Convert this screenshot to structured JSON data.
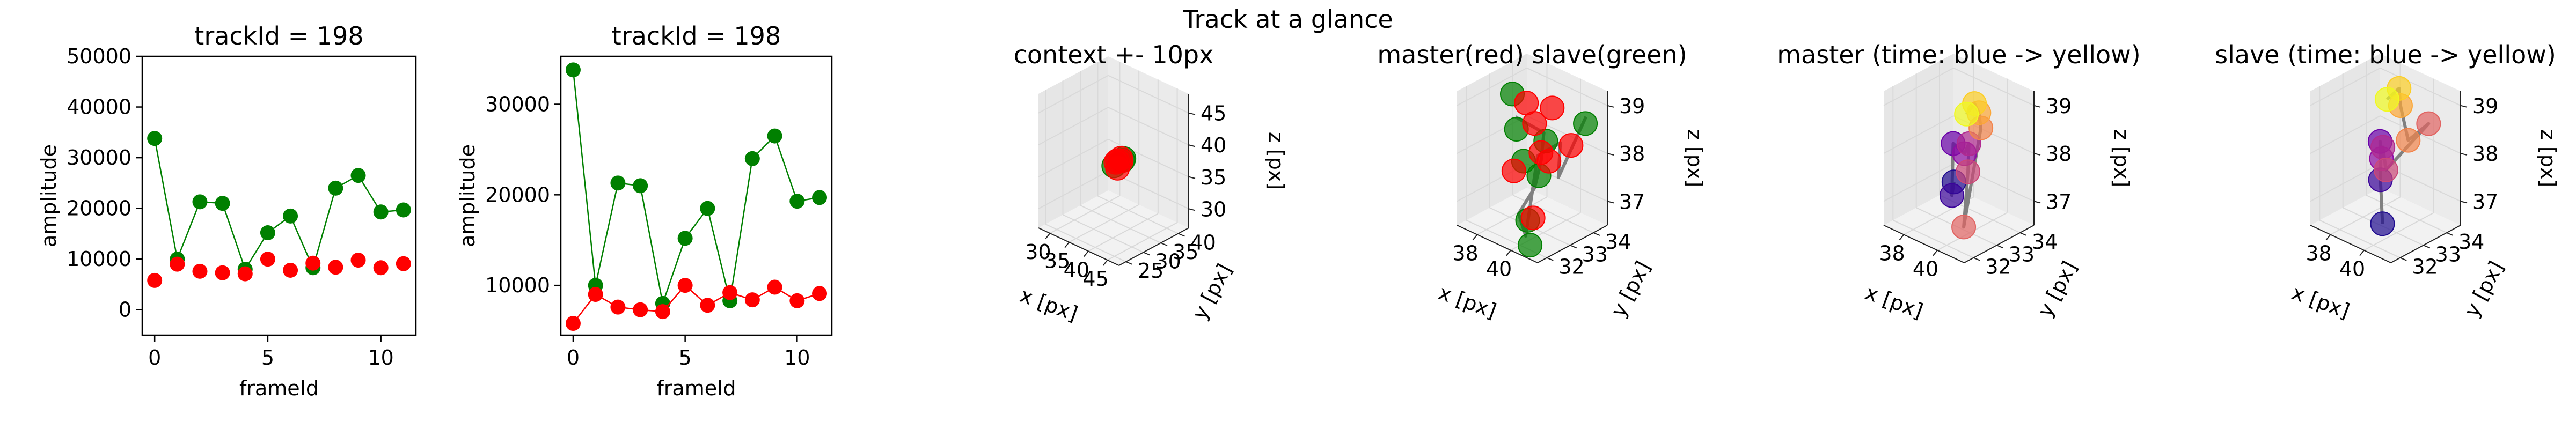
{
  "suptitle": "Track at a glance",
  "colors": {
    "master": "#ff0000",
    "slave": "#008000",
    "path": "#808080",
    "pane_wall": "#f2f2f2",
    "grid": "#d9d9d9"
  },
  "chart_data": [
    {
      "type": "line",
      "title": "trackId = 198",
      "xlabel": "frameId",
      "ylabel": "amplitude",
      "xlim": [
        -0.55,
        11.55
      ],
      "ylim": [
        -5000,
        50000
      ],
      "xticks": [
        "0",
        "5",
        "10"
      ],
      "xtick_values": [
        0,
        5,
        10
      ],
      "yticks": [
        "0",
        "10000",
        "20000",
        "30000",
        "40000",
        "50000"
      ],
      "ytick_values": [
        0,
        10000,
        20000,
        30000,
        40000,
        50000
      ],
      "x": [
        0,
        1,
        2,
        3,
        4,
        5,
        6,
        7,
        8,
        9,
        10,
        11
      ],
      "series": [
        {
          "color": "#008000",
          "line": true,
          "values": [
            33800,
            10000,
            21300,
            21000,
            8000,
            15200,
            18500,
            8300,
            24000,
            26500,
            19300,
            19700
          ]
        },
        {
          "color": "#ff0000",
          "line": false,
          "values": [
            5800,
            9000,
            7600,
            7300,
            7100,
            10000,
            7800,
            9200,
            8400,
            9800,
            8300,
            9100
          ]
        }
      ]
    },
    {
      "type": "line",
      "title": "trackId = 198",
      "xlabel": "frameId",
      "ylabel": "amplitude",
      "xlim": [
        -0.55,
        11.55
      ],
      "ylim": [
        4500,
        35300
      ],
      "xticks": [
        "0",
        "5",
        "10"
      ],
      "xtick_values": [
        0,
        5,
        10
      ],
      "yticks": [
        "10000",
        "20000",
        "30000"
      ],
      "ytick_values": [
        10000,
        20000,
        30000
      ],
      "x": [
        0,
        1,
        2,
        3,
        4,
        5,
        6,
        7,
        8,
        9,
        10,
        11
      ],
      "series": [
        {
          "color": "#008000",
          "line": true,
          "values": [
            33800,
            10000,
            21300,
            21000,
            8000,
            15200,
            18500,
            8300,
            24000,
            26500,
            19300,
            19700
          ]
        },
        {
          "color": "#ff0000",
          "line": true,
          "values": [
            5800,
            9000,
            7600,
            7300,
            7100,
            10000,
            7800,
            9200,
            8400,
            9800,
            8300,
            9100
          ]
        }
      ]
    },
    {
      "type": "scatter",
      "dims": 3,
      "title": "context +- 10px",
      "xlabel": "x [px]",
      "ylabel": "y [px]",
      "zlabel": "z [px]",
      "xlim": [
        27,
        48
      ],
      "ylim": [
        23,
        43
      ],
      "zlim": [
        27,
        48
      ],
      "xticks": [
        "30",
        "35",
        "40",
        "45"
      ],
      "xtick_values": [
        30,
        35,
        40,
        45
      ],
      "yticks": [
        "25",
        "30",
        "35",
        "40"
      ],
      "ytick_values": [
        25,
        30,
        35,
        40
      ],
      "zticks": [
        "30",
        "35",
        "40",
        "45"
      ],
      "ztick_values": [
        30,
        35,
        40,
        45
      ],
      "path_x": [
        38.5,
        39.0,
        38.3,
        39.2,
        38.6,
        39.0
      ],
      "path_y": [
        33.0,
        33.3,
        32.8,
        33.4,
        32.9,
        33.2
      ],
      "path_z": [
        37.5,
        38.0,
        37.4,
        38.2,
        37.6,
        38.1
      ],
      "series": [
        {
          "color": "#008000",
          "x": [
            39.5,
            38.0,
            40.0
          ],
          "y": [
            33.5,
            32.5,
            33.2
          ],
          "z": [
            38.0,
            37.0,
            38.5
          ]
        },
        {
          "color": "#ff0000",
          "x": [
            38.5,
            39.0,
            38.2,
            39.4,
            38.8
          ],
          "y": [
            33.0,
            33.4,
            32.9,
            33.1,
            32.7
          ],
          "z": [
            37.8,
            38.2,
            37.5,
            38.0,
            36.8
          ]
        }
      ]
    },
    {
      "type": "scatter",
      "dims": 3,
      "title": "master(red) slave(green)",
      "xlabel": "x [px]",
      "ylabel": "y [px]",
      "zlabel": "z [px]",
      "xlim": [
        36.8,
        41.6
      ],
      "ylim": [
        31.6,
        34.6
      ],
      "zlim": [
        36.5,
        39.3
      ],
      "xticks": [
        "38",
        "40"
      ],
      "xtick_values": [
        38,
        40
      ],
      "yticks": [
        "32",
        "33",
        "34"
      ],
      "ytick_values": [
        32,
        33,
        34
      ],
      "zticks": [
        "37",
        "38",
        "39"
      ],
      "ztick_values": [
        37,
        38,
        39
      ],
      "path_x": [
        38.2,
        39.2,
        39.6,
        39.9,
        39.5,
        40.2,
        39.8,
        40.6,
        40.9,
        41.3
      ],
      "path_y": [
        33.1,
        33.6,
        33.2,
        32.7,
        32.3,
        32.1,
        32.9,
        33.3,
        33.0,
        33.9
      ],
      "path_z": [
        38.6,
        38.3,
        37.9,
        37.5,
        37.0,
        36.7,
        38.1,
        38.4,
        37.8,
        38.9
      ],
      "series": [
        {
          "color": "#008000",
          "x": [
            37.6,
            38.4,
            39.1,
            39.9,
            40.6,
            41.4,
            38.9,
            39.6
          ],
          "y": [
            33.4,
            33.0,
            32.8,
            32.4,
            32.0,
            33.8,
            33.9,
            33.1
          ],
          "z": [
            38.9,
            38.4,
            37.9,
            36.9,
            36.6,
            38.8,
            38.0,
            37.6
          ]
        },
        {
          "color": "#ff0000",
          "x": [
            38.3,
            39.2,
            40.0,
            40.5,
            41.1,
            39.7,
            38.8,
            40.2
          ],
          "y": [
            33.5,
            33.2,
            32.9,
            32.2,
            33.4,
            33.6,
            32.6,
            33.1
          ],
          "z": [
            38.8,
            38.6,
            38.2,
            37.1,
            38.4,
            38.9,
            37.7,
            38.0
          ]
        }
      ]
    },
    {
      "type": "scatter",
      "dims": 3,
      "title": "master (time: blue -> yellow)",
      "xlabel": "x [px]",
      "ylabel": "y [px]",
      "zlabel": "z [px]",
      "xlim": [
        36.8,
        41.6
      ],
      "ylim": [
        31.6,
        34.6
      ],
      "zlim": [
        36.5,
        39.3
      ],
      "xticks": [
        "38",
        "40"
      ],
      "xtick_values": [
        38,
        40
      ],
      "yticks": [
        "32",
        "33",
        "34"
      ],
      "ytick_values": [
        32,
        33,
        34
      ],
      "zticks": [
        "37",
        "38",
        "39"
      ],
      "ztick_values": [
        37,
        38,
        39
      ],
      "path_x": [
        39.6,
        39.2,
        39.0,
        39.4,
        39.8,
        40.3,
        40.6,
        40.1,
        39.7,
        39.3,
        39.1
      ],
      "path_y": [
        32.6,
        32.8,
        33.0,
        33.2,
        33.1,
        32.7,
        32.3,
        33.4,
        33.6,
        33.7,
        33.5
      ],
      "path_z": [
        37.6,
        37.2,
        38.2,
        38.0,
        38.3,
        37.9,
        36.9,
        38.6,
        38.8,
        38.9,
        38.7
      ],
      "series": [
        {
          "colors": [
            "#1f0c8f",
            "#3b049a",
            "#6a00a8",
            "#8f0da4",
            "#b12a90",
            "#cc4778",
            "#e16462",
            "#f2844b",
            "#fca636",
            "#fcce25",
            "#f0f921"
          ],
          "x": [
            39.6,
            39.2,
            39.0,
            39.4,
            39.8,
            40.3,
            40.6,
            40.1,
            39.7,
            39.3,
            39.1
          ],
          "y": [
            32.6,
            32.8,
            33.0,
            33.2,
            33.1,
            32.7,
            32.3,
            33.4,
            33.6,
            33.7,
            33.5
          ],
          "z": [
            37.6,
            37.2,
            38.2,
            38.0,
            38.3,
            37.9,
            36.9,
            38.6,
            38.8,
            38.9,
            38.7
          ]
        }
      ]
    },
    {
      "type": "scatter",
      "dims": 3,
      "title": "slave (time: blue -> yellow)",
      "xlabel": "x [px]",
      "ylabel": "y [px]",
      "zlabel": "z [px]",
      "xlim": [
        36.8,
        41.6
      ],
      "ylim": [
        31.6,
        34.6
      ],
      "zlim": [
        36.5,
        39.3
      ],
      "xticks": [
        "38",
        "40"
      ],
      "xtick_values": [
        38,
        40
      ],
      "yticks": [
        "32",
        "33",
        "34"
      ],
      "ytick_values": [
        32,
        33,
        34
      ],
      "path_x": [
        39.3,
        38.9,
        38.6,
        39.1,
        39.6,
        40.2,
        40.8,
        40.0,
        39.4,
        38.9,
        38.6
      ],
      "path_y": [
        32.9,
        33.1,
        33.3,
        33.0,
        32.7,
        32.4,
        33.8,
        33.5,
        33.6,
        33.9,
        33.6
      ],
      "path_z": [
        36.6,
        37.4,
        38.1,
        37.9,
        38.3,
        38.0,
        38.7,
        38.3,
        38.9,
        39.1,
        38.9
      ],
      "zticks": [
        "37",
        "38",
        "39"
      ],
      "ztick_values": [
        37,
        38,
        39
      ],
      "series": [
        {
          "colors": [
            "#1f0c8f",
            "#3b049a",
            "#6a00a8",
            "#8f0da4",
            "#b12a90",
            "#cc4778",
            "#e16462",
            "#f2844b",
            "#fca636",
            "#fcce25",
            "#f0f921"
          ],
          "x": [
            39.3,
            38.9,
            38.6,
            39.1,
            39.6,
            40.2,
            40.8,
            40.0,
            39.4,
            38.9,
            38.6
          ],
          "y": [
            32.9,
            33.1,
            33.3,
            33.0,
            32.7,
            32.4,
            33.8,
            33.5,
            33.6,
            33.9,
            33.6
          ],
          "z": [
            36.6,
            37.4,
            38.1,
            37.9,
            38.3,
            38.0,
            38.7,
            38.3,
            38.9,
            39.1,
            38.9
          ]
        }
      ]
    }
  ]
}
